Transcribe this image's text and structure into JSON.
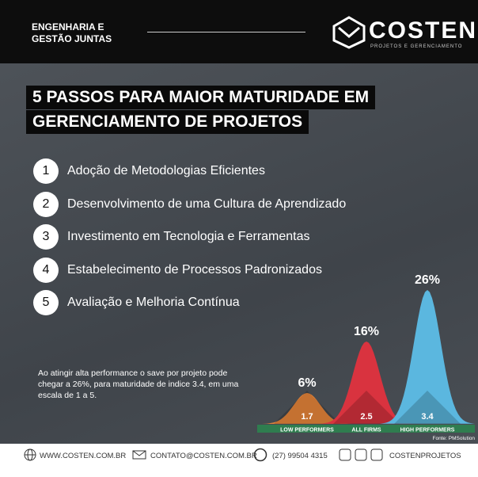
{
  "header": {
    "tagline": [
      "ENGENHARIA E",
      "GESTÃO JUNTAS"
    ],
    "brand": "COSTEN",
    "brand_sub": "PROJETOS E GERENCIAMENTO"
  },
  "title": [
    "5 PASSOS PARA MAIOR MATURIDADE EM",
    "GERENCIAMENTO DE PROJETOS"
  ],
  "steps": [
    {
      "number": 1,
      "text": "Adoção de Metodologias Eficientes"
    },
    {
      "number": 2,
      "text": "Desenvolvimento de uma Cultura de Aprendizado"
    },
    {
      "number": 3,
      "text": "Investimento em Tecnologia e Ferramentas"
    },
    {
      "number": 4,
      "text": "Estabelecimento de Processos Padronizados"
    },
    {
      "number": 5,
      "text": "Avaliação e Melhoria Contínua"
    }
  ],
  "note": "Ao atingir alta performance o save por projeto pode chegar a 26%, para maturidade de indice 3.4, em uma escala de 1 a 5.",
  "chart_data": {
    "type": "bell",
    "categories": [
      "LOW PERFORMERS",
      "ALL FIRMS",
      "HIGH PERFORMERS"
    ],
    "values": [
      6,
      16,
      26
    ],
    "value_labels": [
      "6%",
      "16%",
      "26%"
    ],
    "maturity": [
      1.7,
      2.5,
      3.4
    ],
    "colors": [
      "#f08a3c",
      "#d9333f",
      "#5bb7df"
    ],
    "source": "Fonte: PMSolution"
  },
  "footer": {
    "site": "WWW.COSTEN.COM.BR",
    "email": "CONTATO@COSTEN.COM.BR",
    "phone": "(27) 99504 4315",
    "social": "COSTENPROJETOS"
  }
}
